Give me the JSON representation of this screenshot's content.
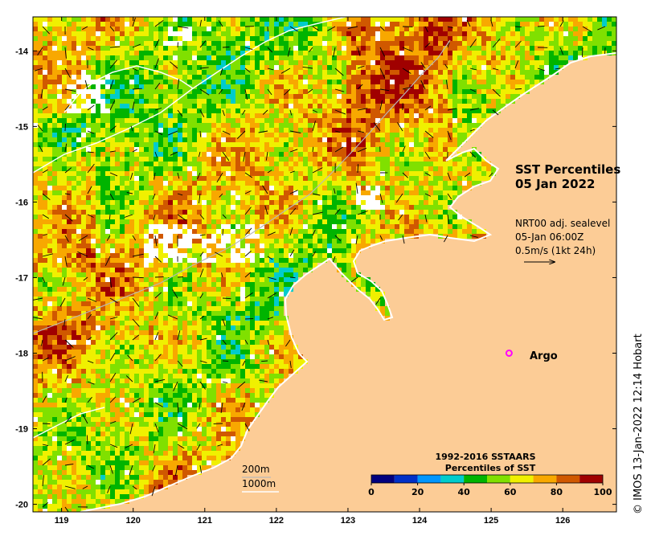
{
  "title": {
    "line1": "SST Percentiles",
    "line2": "05 Jan 2022"
  },
  "current_info": {
    "line1": "NRT00 adj. sealevel",
    "line2": "05-Jan 06:00Z",
    "line3": "0.5m/s (1kt 24h)"
  },
  "argo": {
    "label": "Argo",
    "lon": 125.25,
    "lat": -18.0,
    "color": "#ff00ff"
  },
  "scale_legend": {
    "line1": "200m",
    "line2": "1000m"
  },
  "colorbar": {
    "title_line1": "1992-2016 SSTAARS",
    "title_line2": "Percentiles of SST",
    "ticks": [
      "0",
      "20",
      "40",
      "60",
      "80",
      "100"
    ],
    "colors": [
      "#00007f",
      "#0030c8",
      "#0096ff",
      "#00cccc",
      "#00b400",
      "#80e000",
      "#f0f000",
      "#f8a800",
      "#d05800",
      "#a00000"
    ]
  },
  "credit": "© IMOS 13-Jan-2022 12:14 Hobart",
  "axes": {
    "x_ticks": [
      "119",
      "120",
      "121",
      "122",
      "123",
      "124",
      "125",
      "126"
    ],
    "y_ticks": [
      "-14",
      "-15",
      "-16",
      "-17",
      "-18",
      "-19",
      "-20"
    ],
    "lon_range": [
      118.6,
      126.75
    ],
    "lat_range": [
      -20.1,
      -13.55
    ]
  },
  "colors": {
    "land": "#fccc96",
    "coast": "#ffffff",
    "vector": "#000000"
  }
}
